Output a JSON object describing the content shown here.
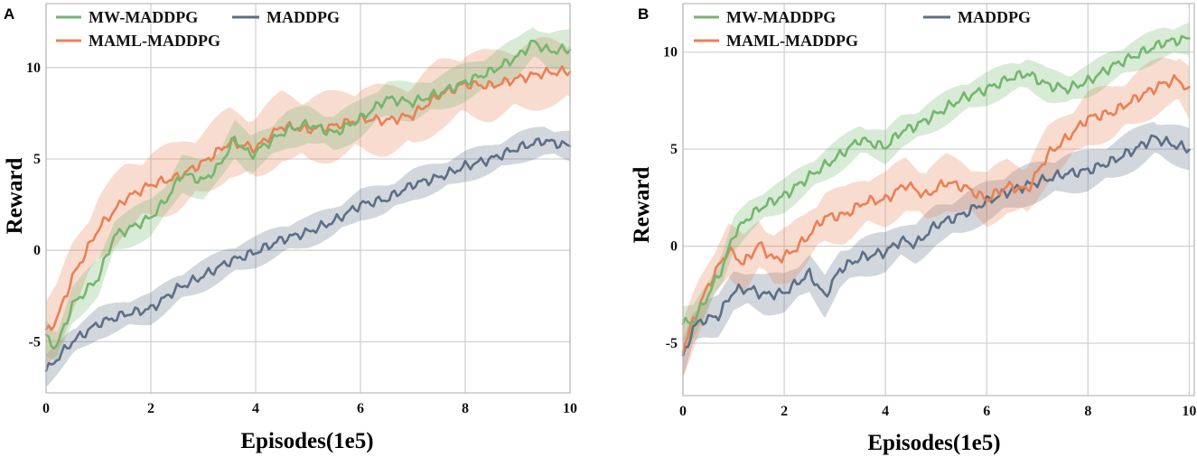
{
  "colors": {
    "mw": "#74b66e",
    "maml": "#ea8055",
    "maddpg": "#5c6f86"
  },
  "chart_data": [
    {
      "panel": "A",
      "type": "line",
      "xlabel": "Episodes(1e5)",
      "ylabel": "Reward",
      "xlim": [
        0,
        10
      ],
      "ylim": [
        -7.8,
        13.5
      ],
      "xticks": [
        0,
        2,
        4,
        6,
        8,
        10
      ],
      "yticks": [
        -5,
        0,
        5,
        10
      ],
      "xtick_labels": [
        "0",
        "2",
        "4",
        "6",
        "8",
        "10"
      ],
      "ytick_labels": [
        "-5",
        "0",
        "5",
        "10"
      ],
      "grid": true,
      "legend_position": "top-left",
      "series": [
        {
          "name": "MW-MADDPG",
          "color_key": "mw",
          "x": [
            0,
            0.2,
            0.5,
            1,
            1.3,
            1.6,
            2,
            2.3,
            2.6,
            3,
            3.3,
            3.6,
            3.9,
            4.2,
            4.6,
            5,
            5.5,
            6,
            6.5,
            7,
            7.5,
            8,
            8.5,
            9,
            9.3,
            9.6,
            10
          ],
          "y": [
            -4.8,
            -5.3,
            -3,
            -1.5,
            0.8,
            1.2,
            1.8,
            2.8,
            4.2,
            3.8,
            4.6,
            6.1,
            5.2,
            5.8,
            6.6,
            6.9,
            6.4,
            7.2,
            8.3,
            8.1,
            8.6,
            9.2,
            9.8,
            10.6,
            11.4,
            10.9,
            11
          ],
          "band": 1.1
        },
        {
          "name": "MAML-MADDPG",
          "color_key": "maml",
          "x": [
            0,
            0.2,
            0.5,
            1,
            1.5,
            2,
            2.5,
            3,
            3.5,
            4,
            4.5,
            5,
            5.5,
            6,
            6.5,
            7,
            7.5,
            8,
            8.5,
            9,
            9.5,
            10
          ],
          "y": [
            -4.5,
            -3.8,
            -1.5,
            1.2,
            2.8,
            3.6,
            4,
            4.8,
            5.9,
            5.6,
            6.8,
            6.6,
            6.8,
            7.2,
            7.1,
            7.4,
            8.5,
            9.1,
            9,
            9.4,
            9.7,
            9.8
          ],
          "band": 2.0
        },
        {
          "name": "MADDPG",
          "color_key": "maddpg",
          "x": [
            0,
            0.5,
            1,
            1.5,
            2,
            2.5,
            3,
            3.5,
            4,
            4.5,
            5,
            5.5,
            6,
            6.5,
            7,
            7.5,
            8,
            8.5,
            9,
            9.5,
            10
          ],
          "y": [
            -6.6,
            -5,
            -4,
            -3.5,
            -3.2,
            -2.1,
            -1.4,
            -0.6,
            -0.1,
            0.6,
            1,
            1.6,
            2.5,
            2.8,
            3.6,
            4,
            4.6,
            5,
            5.6,
            6,
            5.7
          ],
          "band": 0.9
        }
      ]
    },
    {
      "panel": "B",
      "type": "line",
      "xlabel": "Episodes(1e5)",
      "ylabel": "Reward",
      "xlim": [
        0,
        10.1
      ],
      "ylim": [
        -7.7,
        12.5
      ],
      "xticks": [
        0,
        2,
        4,
        6,
        8,
        10
      ],
      "yticks": [
        -5,
        0,
        5,
        10
      ],
      "xtick_labels": [
        "0",
        "2",
        "4",
        "6",
        "8",
        "10"
      ],
      "ytick_labels": [
        "-5",
        "0",
        "5",
        "10"
      ],
      "grid": true,
      "legend_position": "top-left",
      "series": [
        {
          "name": "MW-MADDPG",
          "color_key": "mw",
          "x": [
            0,
            0.2,
            0.5,
            0.8,
            1,
            1.3,
            1.6,
            2,
            2.5,
            3,
            3.5,
            4,
            4.3,
            4.6,
            5,
            5.5,
            6,
            6.5,
            6.8,
            7.2,
            7.6,
            8,
            8.5,
            9,
            9.5,
            10
          ],
          "y": [
            -4,
            -3.9,
            -2.5,
            -1,
            0.6,
            1.5,
            2.1,
            2.6,
            3.6,
            4.5,
            5.5,
            5.1,
            5.9,
            6.2,
            6.8,
            7.6,
            8.1,
            8.7,
            8.9,
            8.3,
            8.1,
            8.5,
            9.3,
            9.9,
            10.5,
            10.7
          ],
          "band": 0.9
        },
        {
          "name": "MAML-MADDPG",
          "color_key": "maml",
          "x": [
            0,
            0.3,
            0.6,
            0.9,
            1.2,
            1.5,
            1.8,
            2.1,
            2.4,
            2.8,
            3.2,
            3.6,
            4,
            4.4,
            4.8,
            5.2,
            5.6,
            6,
            6.4,
            6.8,
            7.2,
            7.6,
            8,
            8.5,
            9,
            9.5,
            9.8,
            10
          ],
          "y": [
            -5.3,
            -3.2,
            -1.5,
            -0.2,
            -0.9,
            0.1,
            -0.7,
            -0.4,
            0.3,
            1.5,
            1.6,
            2.3,
            2.4,
            3.2,
            2.6,
            3.3,
            3,
            2.4,
            3.1,
            2.9,
            4.7,
            5.6,
            6.6,
            6.9,
            7.7,
            8.4,
            8.6,
            7.9
          ],
          "band": 1.5
        },
        {
          "name": "MADDPG",
          "color_key": "maddpg",
          "x": [
            0,
            0.2,
            0.4,
            0.7,
            1,
            1.3,
            1.6,
            2,
            2.3,
            2.5,
            2.8,
            3.1,
            3.5,
            4,
            4.3,
            4.6,
            5,
            5.5,
            6,
            6.5,
            7,
            7.5,
            8,
            8.5,
            9,
            9.3,
            9.6,
            10
          ],
          "y": [
            -5.8,
            -4.2,
            -3.8,
            -3.6,
            -2.3,
            -2.2,
            -2.5,
            -2.4,
            -1.8,
            -1.4,
            -2.6,
            -1.2,
            -0.6,
            -0.3,
            0.3,
            0.1,
            1.1,
            1.6,
            2.3,
            2.9,
            3.3,
            3.7,
            3.9,
            4.4,
            5.1,
            5.6,
            5.3,
            5
          ],
          "band": 1.1
        }
      ]
    }
  ]
}
